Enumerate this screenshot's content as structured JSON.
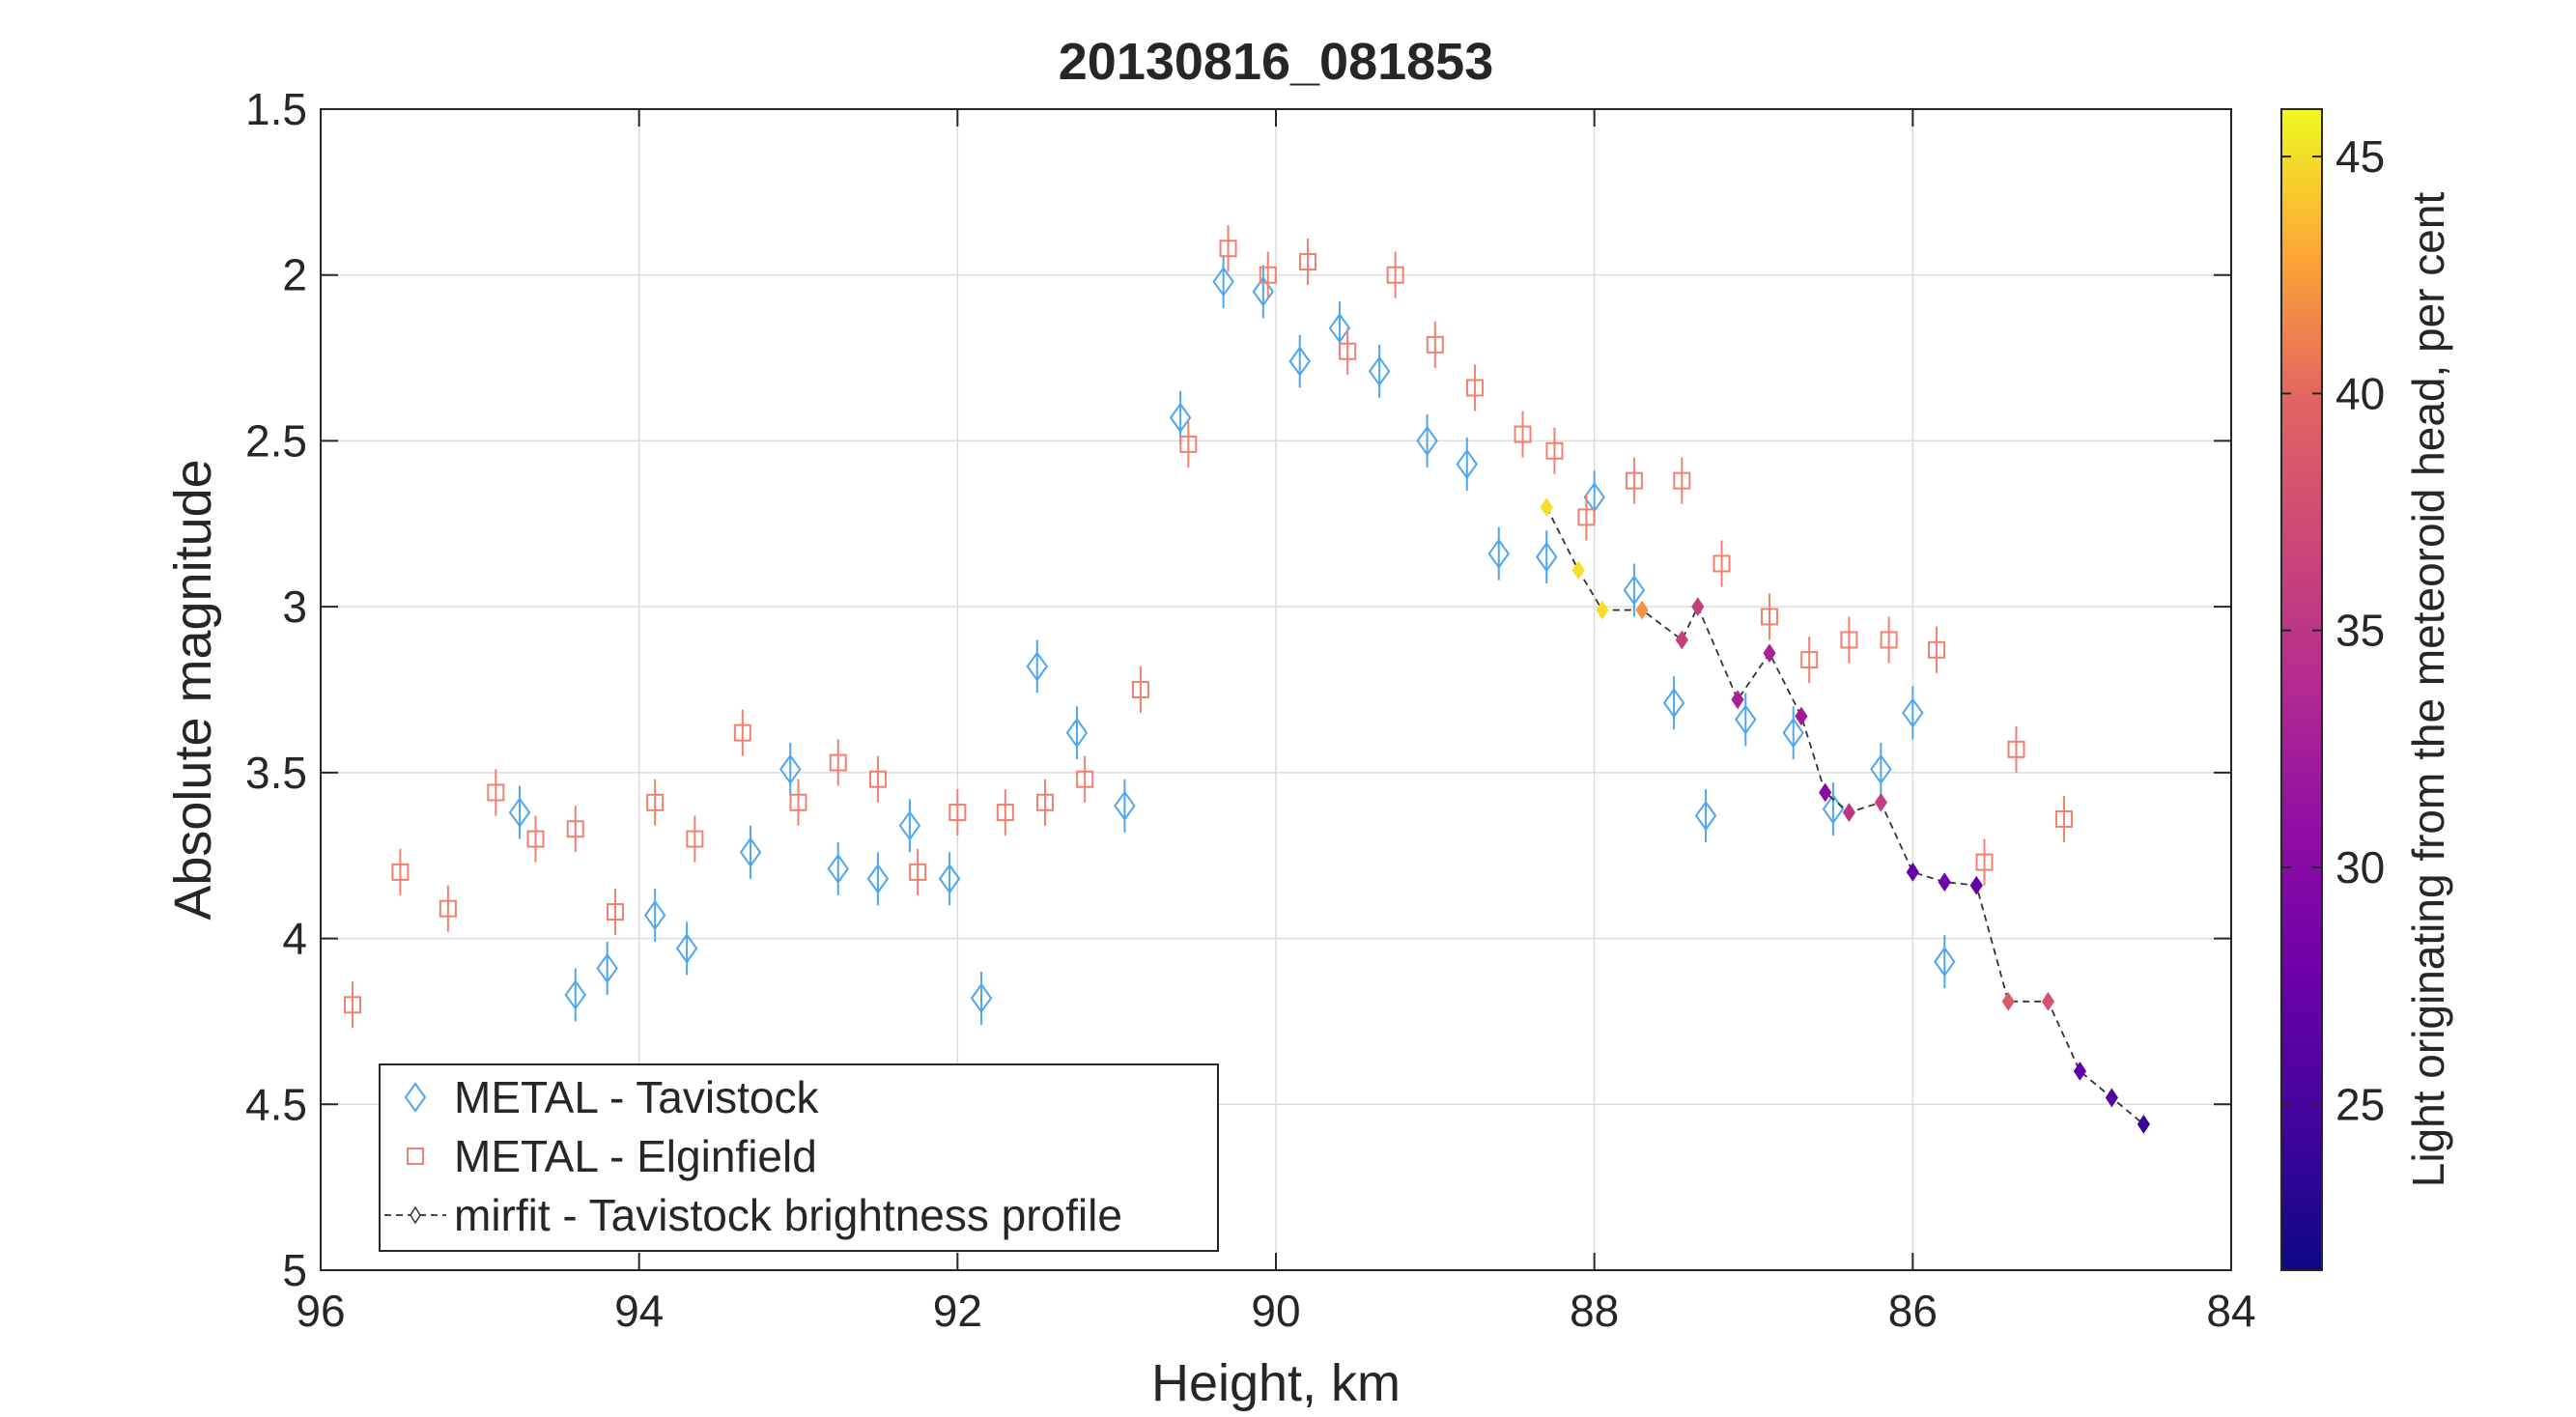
{
  "chart_data": {
    "type": "scatter",
    "title": "20130816_081853",
    "xlabel": "Height, km",
    "ylabel": "Absolute magnitude",
    "xlim": [
      96,
      84
    ],
    "xdirection": "reversed",
    "ylim": [
      1.5,
      5
    ],
    "ydirection": "reversed",
    "grid": true,
    "legend_position": "bottom-left",
    "xticks": [
      "96",
      "94",
      "92",
      "90",
      "88",
      "86",
      "84"
    ],
    "yticks": [
      "1.5",
      "2",
      "2.5",
      "3",
      "3.5",
      "4",
      "4.5",
      "5"
    ],
    "colorbar": {
      "label": "Light originating from the meteoroid head, per cent",
      "range": [
        21.5,
        46
      ],
      "ticks": [
        "25",
        "30",
        "35",
        "40",
        "45"
      ],
      "colormap": "plasma"
    },
    "series": [
      {
        "name": "METAL - Tavistock",
        "marker": "diamond",
        "color": "#4da6f0",
        "error": 0.08,
        "points": [
          [
            94.75,
            3.62
          ],
          [
            94.4,
            4.17
          ],
          [
            94.2,
            4.09
          ],
          [
            93.9,
            3.93
          ],
          [
            93.7,
            4.03
          ],
          [
            93.3,
            3.74
          ],
          [
            93.05,
            3.49
          ],
          [
            92.75,
            3.79
          ],
          [
            92.5,
            3.82
          ],
          [
            92.3,
            3.66
          ],
          [
            92.05,
            3.82
          ],
          [
            91.85,
            4.18
          ],
          [
            91.5,
            3.18
          ],
          [
            91.25,
            3.38
          ],
          [
            90.95,
            3.6
          ],
          [
            90.6,
            2.43
          ],
          [
            90.33,
            2.02
          ],
          [
            90.08,
            2.05
          ],
          [
            89.85,
            2.26
          ],
          [
            89.6,
            2.16
          ],
          [
            89.35,
            2.29
          ],
          [
            89.05,
            2.5
          ],
          [
            88.8,
            2.57
          ],
          [
            88.6,
            2.84
          ],
          [
            88.3,
            2.85
          ],
          [
            88.0,
            2.67
          ],
          [
            87.75,
            2.95
          ],
          [
            87.5,
            3.29
          ],
          [
            87.3,
            3.63
          ],
          [
            87.05,
            3.34
          ],
          [
            86.75,
            3.38
          ],
          [
            86.5,
            3.61
          ],
          [
            86.2,
            3.49
          ],
          [
            86.0,
            3.32
          ],
          [
            85.8,
            4.07
          ]
        ]
      },
      {
        "name": "METAL - Elginfield",
        "marker": "square",
        "color": "#f08070",
        "error": 0.07,
        "points": [
          [
            95.8,
            4.2
          ],
          [
            95.5,
            3.8
          ],
          [
            95.2,
            3.91
          ],
          [
            94.9,
            3.56
          ],
          [
            94.65,
            3.7
          ],
          [
            94.4,
            3.67
          ],
          [
            94.15,
            3.92
          ],
          [
            93.9,
            3.59
          ],
          [
            93.65,
            3.7
          ],
          [
            93.35,
            3.38
          ],
          [
            93.0,
            3.59
          ],
          [
            92.75,
            3.47
          ],
          [
            92.5,
            3.52
          ],
          [
            92.25,
            3.8
          ],
          [
            92.0,
            3.62
          ],
          [
            91.7,
            3.62
          ],
          [
            91.45,
            3.59
          ],
          [
            91.2,
            3.52
          ],
          [
            90.85,
            3.25
          ],
          [
            90.55,
            2.51
          ],
          [
            90.3,
            1.92
          ],
          [
            90.05,
            2.0
          ],
          [
            89.8,
            1.96
          ],
          [
            89.55,
            2.23
          ],
          [
            89.25,
            2.0
          ],
          [
            89.0,
            2.21
          ],
          [
            88.75,
            2.34
          ],
          [
            88.45,
            2.48
          ],
          [
            88.25,
            2.53
          ],
          [
            88.05,
            2.73
          ],
          [
            87.75,
            2.62
          ],
          [
            87.45,
            2.62
          ],
          [
            87.2,
            2.87
          ],
          [
            86.9,
            3.03
          ],
          [
            86.65,
            3.16
          ],
          [
            86.4,
            3.1
          ],
          [
            86.15,
            3.1
          ],
          [
            85.85,
            3.13
          ],
          [
            85.55,
            3.77
          ],
          [
            85.35,
            3.43
          ],
          [
            85.05,
            3.64
          ]
        ]
      },
      {
        "name": "mirfit - Tavistock brightness profile",
        "marker": "diamond-filled",
        "line": "dashed",
        "color": "#333333",
        "points": [
          [
            88.3,
            2.7,
            45
          ],
          [
            88.1,
            2.89,
            45
          ],
          [
            87.95,
            3.01,
            45
          ],
          [
            87.7,
            3.01,
            42
          ],
          [
            87.45,
            3.1,
            36
          ],
          [
            87.35,
            3.0,
            36
          ],
          [
            87.1,
            3.28,
            33
          ],
          [
            86.9,
            3.14,
            33
          ],
          [
            86.7,
            3.33,
            32
          ],
          [
            86.55,
            3.56,
            30
          ],
          [
            86.4,
            3.62,
            35
          ],
          [
            86.2,
            3.59,
            36
          ],
          [
            86.0,
            3.8,
            27
          ],
          [
            85.8,
            3.83,
            28
          ],
          [
            85.6,
            3.84,
            27
          ],
          [
            85.4,
            4.19,
            39
          ],
          [
            85.15,
            4.19,
            38
          ],
          [
            84.95,
            4.4,
            27
          ],
          [
            84.75,
            4.48,
            26
          ],
          [
            84.55,
            4.56,
            24
          ]
        ]
      }
    ]
  }
}
